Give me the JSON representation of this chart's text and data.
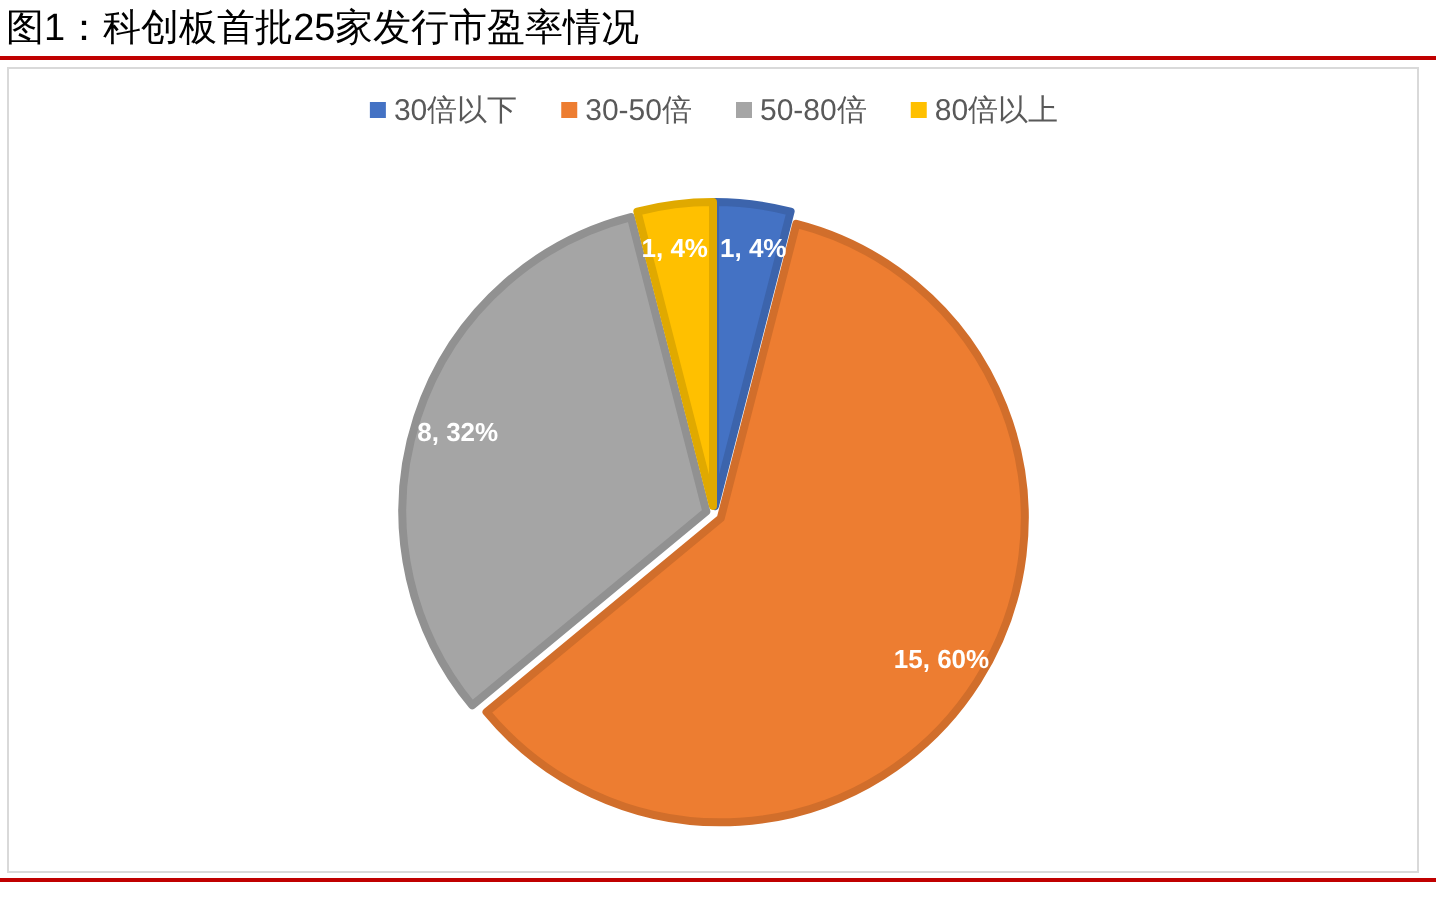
{
  "chart_data": {
    "type": "pie",
    "title": "图1：科创板首批25家发行市盈率情况",
    "categories": [
      "30倍以下",
      "30-50倍",
      "50-80倍",
      "80倍以上"
    ],
    "values": [
      1,
      15,
      8,
      1
    ],
    "colors": [
      "#4472c4",
      "#ed7d31",
      "#a5a5a5",
      "#ffc000"
    ],
    "value_labels": [
      "1, 4%",
      "15, 60%",
      "8, 32%",
      "1, 4%"
    ],
    "legend": "top"
  }
}
